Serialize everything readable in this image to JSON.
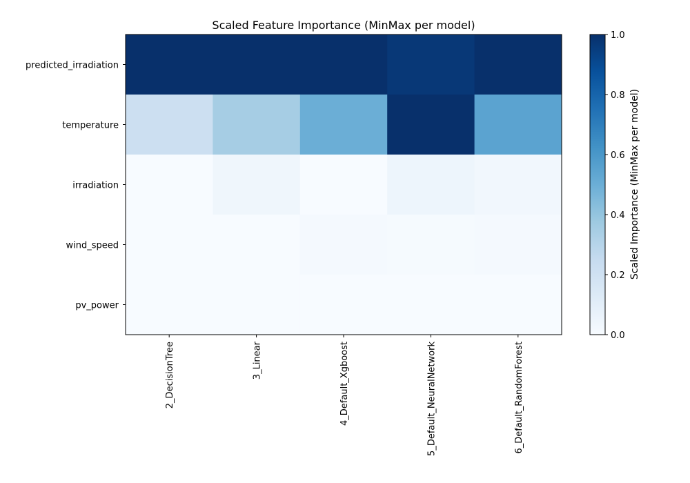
{
  "chart_data": {
    "type": "heatmap",
    "title": "Scaled Feature Importance (MinMax per model)",
    "xlabel": "",
    "ylabel": "",
    "x_categories": [
      "2_DecisionTree",
      "3_Linear",
      "4_Default_Xgboost",
      "5_Default_NeuralNetwork",
      "6_Default_RandomForest"
    ],
    "y_categories": [
      "predicted_irradiation",
      "temperature",
      "irradiation",
      "wind_speed",
      "pv_power"
    ],
    "values": [
      [
        1.0,
        1.0,
        1.0,
        0.97,
        1.0
      ],
      [
        0.22,
        0.35,
        0.5,
        1.0,
        0.55
      ],
      [
        0.0,
        0.04,
        0.0,
        0.05,
        0.03
      ],
      [
        0.0,
        0.0,
        0.015,
        0.01,
        0.015
      ],
      [
        0.0,
        0.0,
        0.0,
        0.0,
        0.0
      ]
    ],
    "colormap": "Blues",
    "colorbar": {
      "label": "Scaled Importance (MinMax per model)",
      "range": [
        0.0,
        1.0
      ],
      "ticks": [
        "0.0",
        "0.2",
        "0.4",
        "0.6",
        "0.8",
        "1.0"
      ]
    }
  }
}
